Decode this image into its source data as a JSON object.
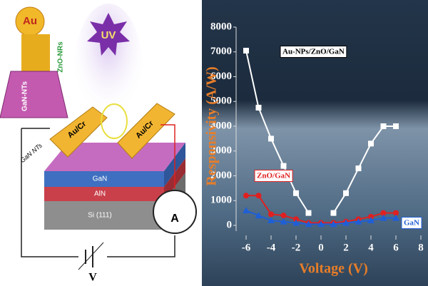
{
  "diagram": {
    "labels": [
      "Au",
      "ZnO-NRs",
      "GaN-NTs",
      "UV",
      "Au/Cr",
      "Au/Cr",
      "GaN NTs",
      "GaN",
      "AlN",
      "Si (111)",
      "A",
      "V"
    ]
  },
  "chart_data": {
    "type": "line",
    "x_label": "Voltage (V)",
    "y_label": "Responsivity (A/W)",
    "x": [
      -6,
      -5,
      -4,
      -3,
      -2,
      -1,
      0,
      1,
      2,
      3,
      4,
      5,
      6
    ],
    "series": [
      {
        "name": "Au-NPs/ZnO/GaN",
        "color": "#ffffff",
        "marker": "square",
        "values": [
          7050,
          4750,
          3500,
          2400,
          1300,
          500,
          null,
          500,
          1300,
          2300,
          3300,
          4000,
          4000
        ]
      },
      {
        "name": "ZnO/GaN",
        "color": "#e02020",
        "marker": "circle",
        "values": [
          1200,
          1200,
          450,
          400,
          250,
          100,
          100,
          100,
          150,
          250,
          350,
          500,
          500
        ]
      },
      {
        "name": "GaN",
        "color": "#1f5fd6",
        "marker": "triangle",
        "values": [
          600,
          400,
          200,
          150,
          100,
          50,
          50,
          50,
          100,
          150,
          200,
          300,
          300
        ]
      }
    ],
    "xlim": [
      -6,
      8
    ],
    "xticks": [
      -6,
      -4,
      -2,
      0,
      2,
      4,
      6,
      8
    ],
    "ylim": [
      0,
      8000
    ],
    "yticks": [
      0,
      1000,
      2000,
      3000,
      4000,
      5000,
      6000,
      7000,
      8000
    ]
  }
}
